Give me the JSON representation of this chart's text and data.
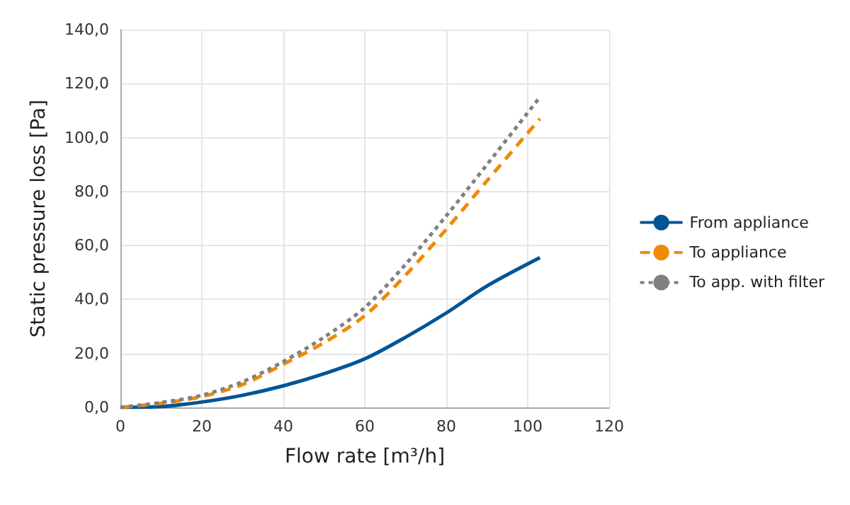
{
  "chart_data": {
    "type": "line",
    "xlabel": "Flow rate [m³/h]",
    "ylabel": "Static pressure loss [Pa]",
    "x": [
      0,
      10,
      20,
      30,
      40,
      50,
      60,
      70,
      80,
      90,
      103
    ],
    "series": [
      {
        "name": "From appliance",
        "color": "#005596",
        "line_style": "solid",
        "values": [
          0,
          0.3,
          2,
          4.5,
          8,
          12.5,
          18,
          26,
          35,
          45,
          55.5
        ]
      },
      {
        "name": "To appliance",
        "color": "#f08a00",
        "line_style": "dashed",
        "values": [
          0,
          1.5,
          4,
          8.5,
          16,
          24,
          34,
          49,
          66,
          84,
          107
        ]
      },
      {
        "name": "To app. with filter",
        "color": "#808080",
        "line_style": "dotted",
        "values": [
          0,
          1.8,
          4.5,
          9.5,
          17,
          26,
          37,
          53,
          71,
          90,
          115
        ]
      }
    ],
    "xlim": [
      0,
      120
    ],
    "xticks": [
      0,
      20,
      40,
      60,
      80,
      100,
      120
    ],
    "ylim": [
      0,
      140
    ],
    "yticks": [
      {
        "value": 0,
        "label": "0,0"
      },
      {
        "value": 20,
        "label": "20,0"
      },
      {
        "value": 40,
        "label": "40,0"
      },
      {
        "value": 60,
        "label": "60,0"
      },
      {
        "value": 80,
        "label": "80,0"
      },
      {
        "value": 100,
        "label": "100,0"
      },
      {
        "value": 120,
        "label": "120,0"
      },
      {
        "value": 140,
        "label": "140,0"
      }
    ],
    "grid": true,
    "legend": "right",
    "marker": "none"
  }
}
